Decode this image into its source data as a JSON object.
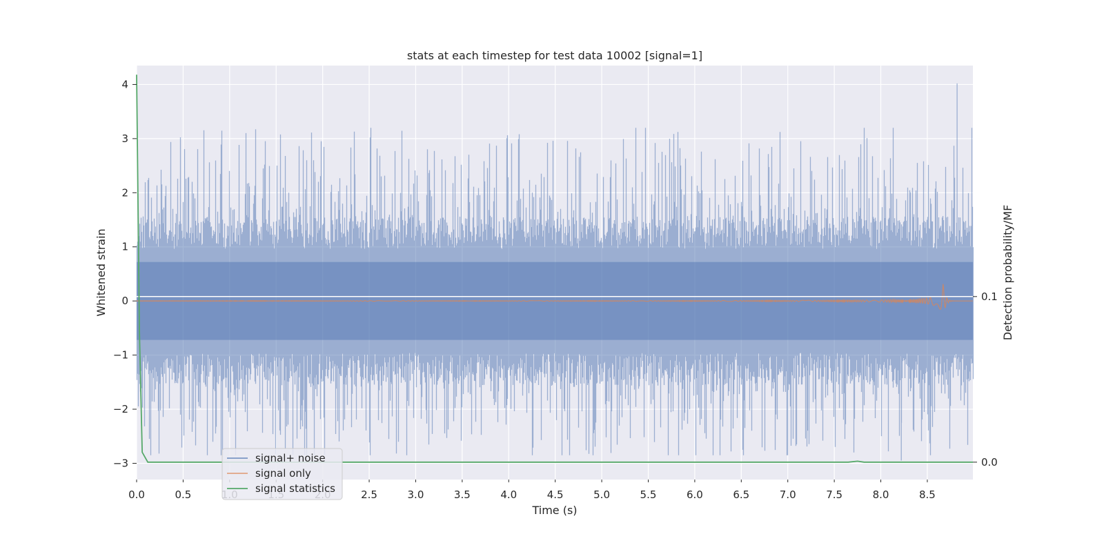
{
  "chart_data": {
    "type": "line",
    "title": "stats at each timestep for test data 10002 [signal=1]",
    "xlabel": "Time (s)",
    "ylabel": "Whitened strain",
    "y2label": "Detection probability/MF",
    "xlim": [
      0,
      8.99
    ],
    "ylim": [
      -3.3,
      4.35
    ],
    "y2lim": [
      -0.0105,
      0.2395
    ],
    "x_ticks": [
      0.0,
      0.5,
      1.0,
      1.5,
      2.0,
      2.5,
      3.0,
      3.5,
      4.0,
      4.5,
      5.0,
      5.5,
      6.0,
      6.5,
      7.0,
      7.5,
      8.0,
      8.5
    ],
    "x_tick_labels": [
      "0.0",
      "0.5",
      "1.0",
      "1.5",
      "2.0",
      "2.5",
      "3.0",
      "3.5",
      "4.0",
      "4.5",
      "5.0",
      "5.5",
      "6.0",
      "6.5",
      "7.0",
      "7.5",
      "8.0",
      "8.5"
    ],
    "y_ticks": [
      -3,
      -2,
      -1,
      0,
      1,
      2,
      3,
      4
    ],
    "y_tick_labels": [
      "−3",
      "−2",
      "−1",
      "0",
      "1",
      "2",
      "3",
      "4"
    ],
    "y2_ticks": [
      0.0,
      0.1
    ],
    "y2_tick_labels": [
      "0.0",
      "0.1"
    ],
    "grid": true,
    "legend_position": "lower-left",
    "series": [
      {
        "name": "signal+ noise",
        "color": "#4c72b0",
        "axis": "left",
        "description_values": "noise band roughly within -3 to 4",
        "envelope": {
          "x_range": [
            0,
            8.99
          ],
          "typical_amplitude": 1.2,
          "peak_max": 4.02,
          "peak_max_x": 8.82,
          "peak_min": -2.95,
          "peak_min_x": 8.22
        }
      },
      {
        "name": "signal only",
        "color": "#dd8452",
        "axis": "left",
        "chirp": {
          "x_start": 0,
          "x_peak": 8.67,
          "x_end": 8.99,
          "peak_amplitude": 0.32
        }
      },
      {
        "name": "signal statistics",
        "color": "#55a868",
        "axis": "right",
        "x": [
          0.0,
          0.03,
          0.06,
          0.12,
          7.65,
          7.75,
          7.82,
          8.99
        ],
        "values": [
          0.234,
          0.08,
          0.006,
          0.0,
          0.0,
          0.0006,
          0.0,
          0.0
        ]
      }
    ],
    "threshold_line": {
      "axis": "right",
      "value": 0.1,
      "color": "#ffffff"
    }
  }
}
